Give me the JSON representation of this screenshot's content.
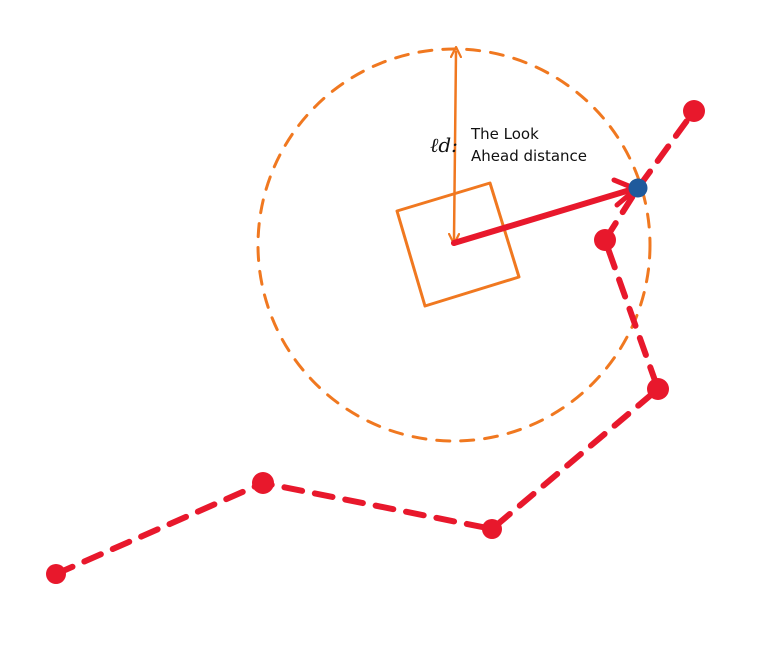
{
  "annotation": {
    "symbol": "ℓd:",
    "line1": "The Look",
    "line2": "Ahead distance"
  },
  "colors": {
    "lookahead_circle": "#f07820",
    "vehicle": "#f07820",
    "path": "#e8182c",
    "target_point": "#1f5a9c",
    "text": "#111111"
  }
}
